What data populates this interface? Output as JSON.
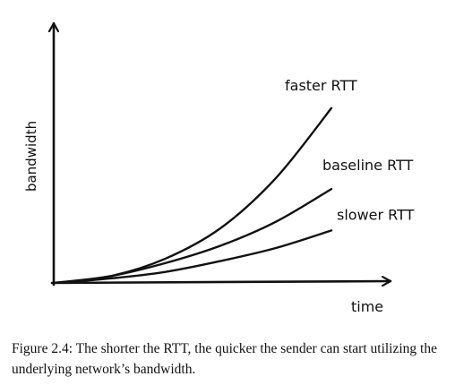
{
  "chart_data": {
    "type": "line",
    "title": "",
    "xlabel": "time",
    "ylabel": "bandwidth",
    "axis_ticks": false,
    "grid": false,
    "legend": "inline labels at line ends",
    "x_range": [
      0,
      1
    ],
    "y_range": [
      0,
      1
    ],
    "series": [
      {
        "name": "faster RTT",
        "x": [
          0,
          0.2,
          0.4,
          0.6,
          0.8,
          1.0
        ],
        "y": [
          0,
          0.03,
          0.11,
          0.25,
          0.48,
          0.8
        ]
      },
      {
        "name": "baseline RTT",
        "x": [
          0,
          0.2,
          0.4,
          0.6,
          0.8,
          1.0
        ],
        "y": [
          0,
          0.03,
          0.09,
          0.17,
          0.28,
          0.43
        ]
      },
      {
        "name": "slower RTT",
        "x": [
          0,
          0.2,
          0.4,
          0.6,
          0.8,
          1.0
        ],
        "y": [
          0,
          0.02,
          0.05,
          0.1,
          0.16,
          0.24
        ]
      }
    ]
  },
  "caption": {
    "text": "Figure 2.4: The shorter the RTT, the quicker the sender can start utilizing the underlying network’s bandwidth."
  }
}
